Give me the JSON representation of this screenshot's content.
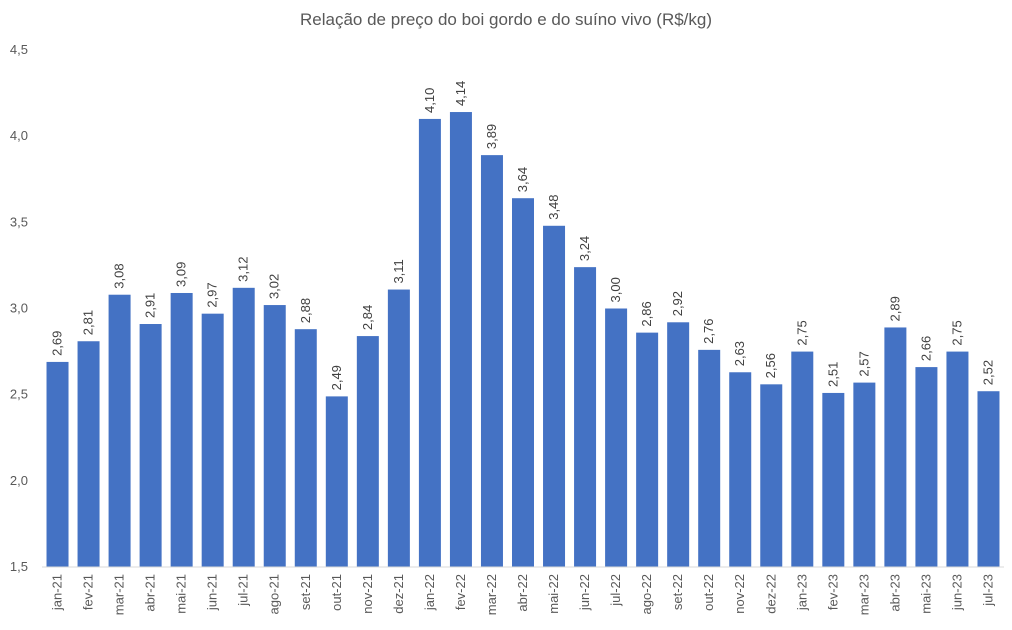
{
  "chart_data": {
    "type": "bar",
    "title": "Relação de preço do boi gordo e do suíno vivo (R$/kg)",
    "xlabel": "",
    "ylabel": "",
    "ylim": [
      1.5,
      4.5
    ],
    "yticks": [
      "1,5",
      "2,0",
      "2,5",
      "3,0",
      "3,5",
      "4,0",
      "4,5"
    ],
    "ytick_values": [
      1.5,
      2.0,
      2.5,
      3.0,
      3.5,
      4.0,
      4.5
    ],
    "grid": false,
    "bar_color": "#4472C4",
    "categories": [
      "jan-21",
      "fev-21",
      "mar-21",
      "abr-21",
      "mai-21",
      "jun-21",
      "jul-21",
      "ago-21",
      "set-21",
      "out-21",
      "nov-21",
      "dez-21",
      "jan-22",
      "fev-22",
      "mar-22",
      "abr-22",
      "mai-22",
      "jun-22",
      "jul-22",
      "ago-22",
      "set-22",
      "out-22",
      "nov-22",
      "dez-22",
      "jan-23",
      "fev-23",
      "mar-23",
      "abr-23",
      "mai-23",
      "jun-23",
      "jul-23"
    ],
    "values": [
      2.69,
      2.81,
      3.08,
      2.91,
      3.09,
      2.97,
      3.12,
      3.02,
      2.88,
      2.49,
      2.84,
      3.11,
      4.1,
      4.14,
      3.89,
      3.64,
      3.48,
      3.24,
      3.0,
      2.86,
      2.92,
      2.76,
      2.63,
      2.56,
      2.75,
      2.51,
      2.57,
      2.89,
      2.66,
      2.75,
      2.52
    ],
    "labels": [
      "2,69",
      "2,81",
      "3,08",
      "2,91",
      "3,09",
      "2,97",
      "3,12",
      "3,02",
      "2,88",
      "2,49",
      "2,84",
      "3,11",
      "4,10",
      "4,14",
      "3,89",
      "3,64",
      "3,48",
      "3,24",
      "3,00",
      "2,86",
      "2,92",
      "2,76",
      "2,63",
      "2,56",
      "2,75",
      "2,51",
      "2,57",
      "2,89",
      "2,66",
      "2,75",
      "2,52"
    ]
  }
}
